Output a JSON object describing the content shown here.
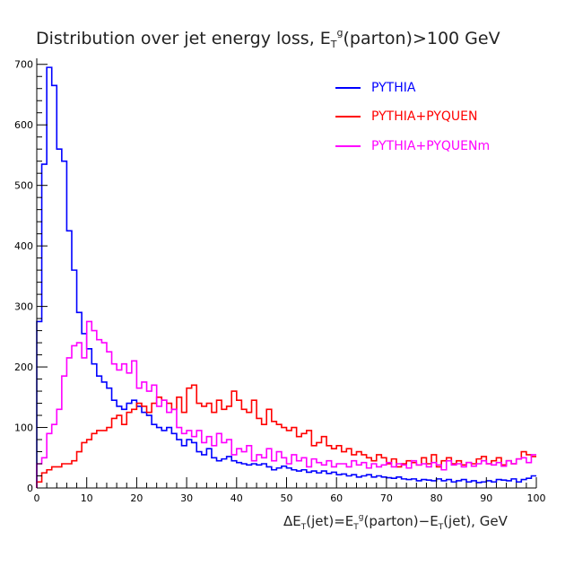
{
  "chart_data": {
    "type": "line",
    "title": "Distribution over jet energy loss, E",
    "title_sub": "T",
    "title_sup": "g",
    "title_tail": "(parton)>100 GeV",
    "xlabel": "ΔE",
    "xlabel_sub1": "T",
    "xlabel_mid1": "(jet)=E",
    "xlabel_sub2": "T",
    "xlabel_sup2": "g",
    "xlabel_mid2": "(parton)−E",
    "xlabel_sub3": "T",
    "xlabel_tail": "(jet), GeV",
    "ylabel": "",
    "xlim": [
      0,
      100
    ],
    "ylim": [
      0,
      710
    ],
    "x_ticks": [
      0,
      10,
      20,
      30,
      40,
      50,
      60,
      70,
      80,
      90,
      100
    ],
    "y_ticks": [
      0,
      100,
      200,
      300,
      400,
      500,
      600,
      700
    ],
    "grid": false,
    "legend_position": "top-right",
    "bin_width": 1,
    "series": [
      {
        "name": "PYTHIA",
        "color": "#0000ff",
        "values": [
          275,
          535,
          695,
          665,
          560,
          540,
          425,
          360,
          290,
          255,
          230,
          205,
          185,
          175,
          165,
          145,
          135,
          130,
          140,
          145,
          135,
          125,
          120,
          105,
          100,
          95,
          100,
          90,
          80,
          70,
          80,
          75,
          60,
          55,
          65,
          50,
          45,
          48,
          52,
          45,
          42,
          40,
          38,
          40,
          38,
          40,
          35,
          30,
          33,
          36,
          33,
          30,
          28,
          30,
          26,
          28,
          25,
          28,
          24,
          26,
          22,
          23,
          20,
          22,
          18,
          20,
          22,
          18,
          20,
          18,
          17,
          16,
          18,
          15,
          14,
          15,
          12,
          14,
          13,
          12,
          15,
          12,
          14,
          10,
          12,
          14,
          10,
          12,
          9,
          10,
          12,
          10,
          14,
          13,
          12,
          15,
          10,
          14,
          16,
          20
        ]
      },
      {
        "name": "PYTHIA+PYQUEN",
        "color": "#ff0000",
        "values": [
          10,
          25,
          30,
          35,
          35,
          40,
          40,
          45,
          60,
          75,
          80,
          90,
          95,
          95,
          100,
          115,
          120,
          105,
          125,
          130,
          140,
          135,
          125,
          140,
          150,
          145,
          140,
          130,
          150,
          125,
          165,
          170,
          140,
          135,
          140,
          125,
          145,
          130,
          135,
          160,
          145,
          130,
          125,
          145,
          115,
          105,
          130,
          110,
          105,
          100,
          95,
          100,
          85,
          90,
          95,
          70,
          75,
          85,
          70,
          65,
          70,
          60,
          65,
          55,
          60,
          55,
          50,
          45,
          55,
          50,
          40,
          48,
          35,
          40,
          45,
          42,
          38,
          50,
          40,
          55,
          35,
          45,
          50,
          40,
          45,
          38,
          42,
          40,
          48,
          52,
          40,
          45,
          50,
          38,
          45,
          40,
          48,
          60,
          55,
          52
        ]
      },
      {
        "name": "PYTHIA+PYQUENm",
        "color": "#ff00ff",
        "values": [
          40,
          50,
          90,
          105,
          130,
          185,
          215,
          235,
          240,
          215,
          275,
          260,
          245,
          240,
          225,
          205,
          195,
          205,
          190,
          210,
          165,
          175,
          160,
          170,
          135,
          145,
          125,
          130,
          100,
          90,
          95,
          85,
          95,
          75,
          85,
          70,
          90,
          75,
          80,
          55,
          65,
          60,
          70,
          45,
          55,
          50,
          65,
          45,
          60,
          50,
          40,
          55,
          45,
          50,
          35,
          48,
          42,
          38,
          45,
          35,
          40,
          40,
          35,
          45,
          38,
          42,
          33,
          40,
          35,
          38,
          42,
          35,
          40,
          38,
          33,
          45,
          38,
          40,
          35,
          42,
          38,
          30,
          45,
          38,
          40,
          35,
          42,
          36,
          40,
          45,
          40,
          38,
          42,
          36,
          45,
          40,
          48,
          50,
          42,
          55
        ]
      }
    ]
  }
}
